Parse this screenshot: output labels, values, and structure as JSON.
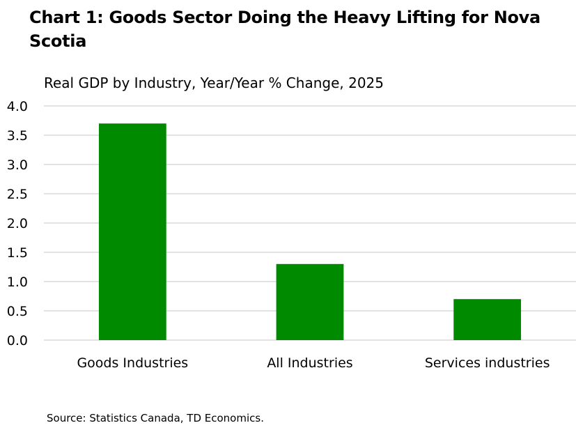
{
  "chart_data": {
    "type": "bar",
    "title": "Chart 1: Goods Sector Doing the Heavy Lifting for Nova Scotia",
    "subtitle": "Real GDP by Industry, Year/Year % Change, 2025",
    "categories": [
      "Goods Industries",
      "All Industries",
      "Services industries"
    ],
    "values": [
      3.7,
      1.3,
      0.7
    ],
    "ylim": [
      0,
      4.0
    ],
    "yticks": [
      "0.0",
      "0.5",
      "1.0",
      "1.5",
      "2.0",
      "2.5",
      "3.0",
      "3.5",
      "4.0"
    ],
    "xlabel": "",
    "ylabel": "",
    "grid": true,
    "bar_color": "#008a00",
    "grid_color": "#d9d9d9",
    "source": "Source: Statistics Canada, TD Economics."
  }
}
